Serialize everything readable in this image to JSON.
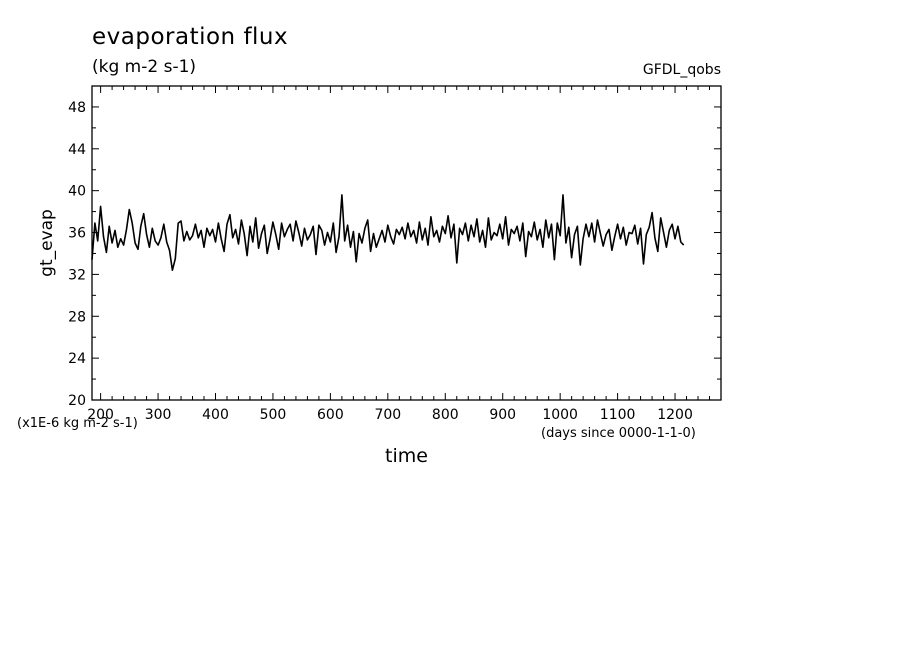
{
  "chart_data": {
    "type": "line",
    "title": "evaporation flux",
    "units": "(kg m-2 s-1)",
    "source_label": "GFDL_qobs",
    "xlabel": "time",
    "ylabel": "gt_evap",
    "y_scale_note": "(x1E-6 kg m-2 s-1)",
    "x_units_note": "(days since 0000-1-1-0)",
    "xlim": [
      185,
      1280
    ],
    "ylim": [
      20,
      50
    ],
    "x_ticks": [
      200,
      300,
      400,
      500,
      600,
      700,
      800,
      900,
      1000,
      1100,
      1200
    ],
    "y_ticks": [
      20,
      24,
      28,
      32,
      36,
      40,
      44,
      48
    ],
    "grid": false,
    "series": [
      {
        "x_start": 185,
        "x_step": 5,
        "values": [
          33.4,
          36.9,
          35.2,
          38.5,
          35.6,
          34.1,
          36.6,
          35.0,
          36.2,
          34.6,
          35.4,
          34.8,
          36.3,
          38.2,
          36.9,
          35.0,
          34.4,
          36.6,
          37.8,
          35.8,
          34.6,
          36.4,
          35.2,
          34.8,
          35.5,
          36.8,
          35.1,
          34.3,
          32.4,
          33.5,
          36.9,
          37.1,
          35.2,
          36.1,
          35.3,
          35.7,
          36.8,
          35.5,
          36.2,
          34.6,
          36.4,
          35.7,
          36.3,
          35.1,
          36.9,
          35.4,
          34.2,
          36.8,
          37.7,
          35.5,
          36.3,
          34.9,
          37.2,
          35.9,
          33.8,
          36.6,
          35.1,
          37.4,
          34.5,
          35.9,
          36.7,
          34.0,
          35.4,
          37.0,
          35.8,
          34.4,
          36.9,
          35.6,
          36.3,
          36.8,
          35.2,
          37.1,
          36.0,
          34.7,
          36.4,
          35.3,
          35.8,
          36.6,
          33.9,
          36.7,
          36.2,
          34.8,
          36.0,
          35.1,
          36.9,
          34.1,
          35.6,
          39.6,
          35.2,
          36.7,
          34.6,
          36.1,
          33.2,
          35.9,
          35.0,
          36.4,
          37.2,
          34.2,
          35.9,
          34.6,
          35.4,
          36.2,
          35.1,
          36.7,
          35.6,
          34.9,
          36.3,
          35.8,
          36.5,
          35.4,
          36.9,
          35.6,
          36.2,
          35.0,
          37.0,
          35.3,
          36.4,
          34.8,
          37.5,
          35.6,
          36.2,
          35.1,
          36.6,
          35.9,
          37.6,
          35.5,
          36.8,
          33.1,
          36.4,
          35.8,
          36.9,
          35.2,
          36.7,
          35.6,
          37.3,
          35.1,
          36.2,
          34.6,
          37.4,
          35.3,
          36.0,
          35.7,
          36.8,
          35.4,
          37.5,
          34.8,
          36.3,
          35.9,
          36.6,
          35.2,
          36.9,
          33.7,
          36.1,
          35.6,
          37.0,
          35.3,
          36.3,
          34.6,
          37.2,
          35.5,
          36.8,
          33.4,
          36.9,
          35.7,
          39.6,
          35.0,
          36.5,
          33.6,
          35.8,
          36.6,
          32.9,
          35.4,
          36.8,
          35.6,
          36.9,
          35.1,
          37.2,
          35.9,
          34.7,
          35.8,
          36.3,
          34.3,
          35.6,
          36.8,
          35.4,
          36.5,
          34.8,
          36.0,
          35.9,
          36.7,
          34.9,
          36.4,
          33.0,
          35.8,
          36.5,
          37.9,
          35.5,
          34.2,
          37.4,
          36.0,
          34.6,
          36.2,
          36.8,
          35.4,
          36.6,
          35.1,
          34.8
        ]
      }
    ]
  }
}
